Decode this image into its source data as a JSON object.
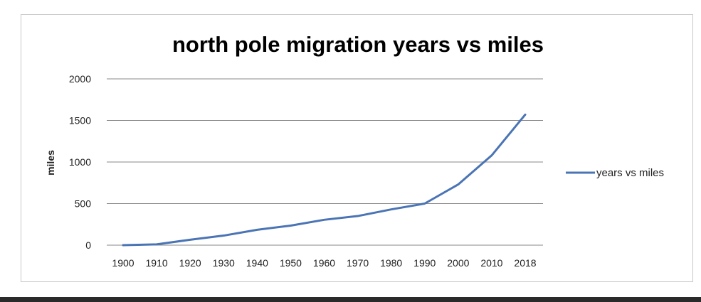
{
  "chart_data": {
    "type": "line",
    "title": "north pole migration years vs miles",
    "xlabel": "",
    "ylabel": "miles",
    "categories": [
      "1900",
      "1910",
      "1920",
      "1930",
      "1940",
      "1950",
      "1960",
      "1970",
      "1980",
      "1990",
      "2000",
      "2010",
      "2018"
    ],
    "series": [
      {
        "name": "years vs miles",
        "values": [
          0,
          10,
          65,
          115,
          185,
          235,
          305,
          350,
          430,
          500,
          730,
          1080,
          1570
        ],
        "color": "#4a74b4"
      }
    ],
    "ylim": [
      0,
      2000
    ],
    "yticks": [
      "0",
      "500",
      "1000",
      "1500",
      "2000"
    ],
    "grid": "horizontal",
    "legend_position": "right"
  }
}
